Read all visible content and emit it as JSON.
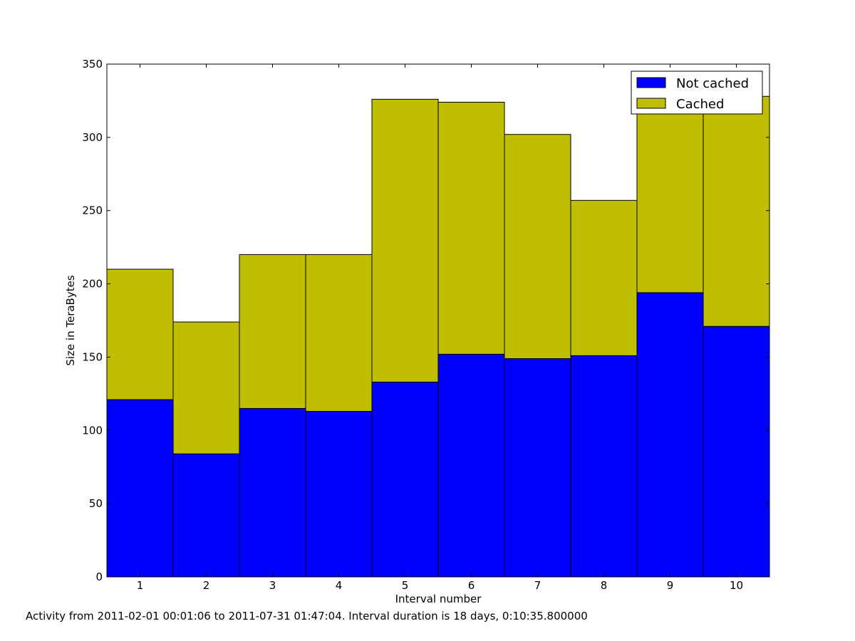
{
  "chart_data": {
    "type": "bar",
    "stacked": true,
    "title": "",
    "xlabel": "Interval number",
    "ylabel": "Size in TeraBytes",
    "categories": [
      "1",
      "2",
      "3",
      "4",
      "5",
      "6",
      "7",
      "8",
      "9",
      "10"
    ],
    "series": [
      {
        "name": "Not cached",
        "color": "#0000ff",
        "values": [
          121,
          84,
          115,
          113,
          133,
          152,
          149,
          151,
          194,
          171
        ]
      },
      {
        "name": "Cached",
        "color": "#bfbf00",
        "values": [
          89,
          90,
          105,
          107,
          193,
          172,
          153,
          106,
          134,
          157
        ]
      }
    ],
    "ylim": [
      0,
      350
    ],
    "yticks": [
      "0",
      "50",
      "100",
      "150",
      "200",
      "250",
      "300",
      "350"
    ],
    "grid": false,
    "legend_position": "top-right"
  },
  "caption": "Activity from 2011-02-01 00:01:06 to 2011-07-31 01:47:04. Interval duration is 18 days, 0:10:35.800000"
}
